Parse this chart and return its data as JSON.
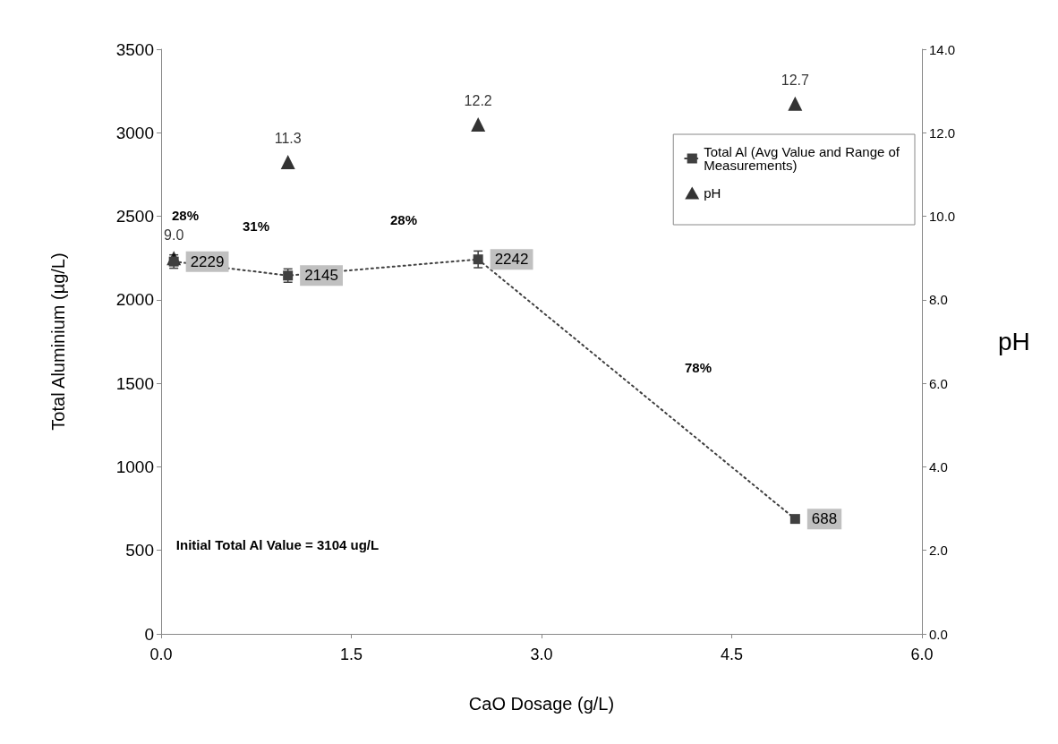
{
  "chart_data": {
    "type": "line",
    "xlabel": "CaO Dosage (g/L)",
    "ylabel": "Total Aluminium (µg/L)",
    "y2label": "pH",
    "x": [
      0.1,
      1.0,
      2.5,
      5.0
    ],
    "series": [
      {
        "name": "Total Al (Avg Value and Range of Measurements)",
        "color": "#404040",
        "values": [
          2229,
          2145,
          2242,
          688
        ],
        "errors": [
          40,
          40,
          50,
          null
        ],
        "marker": "square",
        "line_style": "dotted"
      },
      {
        "name": "pH",
        "type": "scatter",
        "axis": "y2",
        "color": "#000000",
        "values": [
          9.0,
          11.3,
          12.2,
          12.7
        ],
        "value_labels": [
          "9.0",
          "11.3",
          "12.2",
          "12.7"
        ],
        "marker": "triangle"
      }
    ],
    "data_labels": true,
    "xlim": [
      0,
      6
    ],
    "xticks": [
      {
        "value": 0,
        "label": "0.0"
      },
      1.5,
      {
        "value": 3,
        "label": "3.0"
      },
      4.5,
      {
        "value": 6,
        "label": "6.0"
      }
    ],
    "ylim": [
      0,
      3500
    ],
    "yticks": [
      0,
      500,
      1000,
      1500,
      2000,
      2500,
      3000,
      3500
    ],
    "y2lim": [
      0,
      14
    ],
    "y2ticks": [
      {
        "value": 0,
        "label": "0.0"
      },
      {
        "value": 2,
        "label": "2.0"
      },
      {
        "value": 4,
        "label": "4.0"
      },
      {
        "value": 6,
        "label": "6.0"
      },
      {
        "value": 8,
        "label": "8.0"
      },
      {
        "value": 10,
        "label": "10.0"
      },
      {
        "value": 12,
        "label": "12.0"
      },
      {
        "value": 14,
        "label": "14.0"
      }
    ],
    "annotations": [
      "28%",
      "31%",
      "28%",
      "78%",
      "Initial Total Al Value = 3104 ug/L"
    ],
    "grid": false,
    "legend": "top right"
  }
}
